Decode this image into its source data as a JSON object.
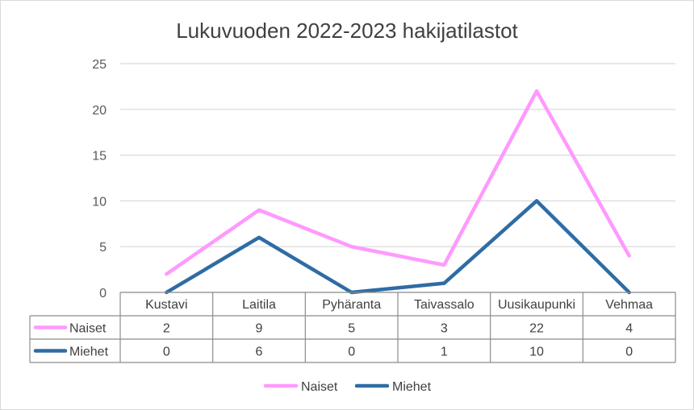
{
  "chart_data": {
    "type": "line",
    "title": "Lukuvuoden 2022-2023 hakijatilastot",
    "categories": [
      "Kustavi",
      "Laitila",
      "Pyhäranta",
      "Taivassalo",
      "Uusikaupunki",
      "Vehmaa"
    ],
    "series": [
      {
        "name": "Naiset",
        "values": [
          2,
          9,
          5,
          3,
          22,
          4
        ],
        "color": "#ff99ff"
      },
      {
        "name": "Miehet",
        "values": [
          0,
          6,
          0,
          1,
          10,
          0
        ],
        "color": "#2e6ca4"
      }
    ],
    "ylim": [
      0,
      25
    ],
    "yticks": [
      "0",
      "5",
      "10",
      "15",
      "20",
      "25"
    ],
    "grid": true,
    "data_table": true,
    "legend": "bottom"
  }
}
